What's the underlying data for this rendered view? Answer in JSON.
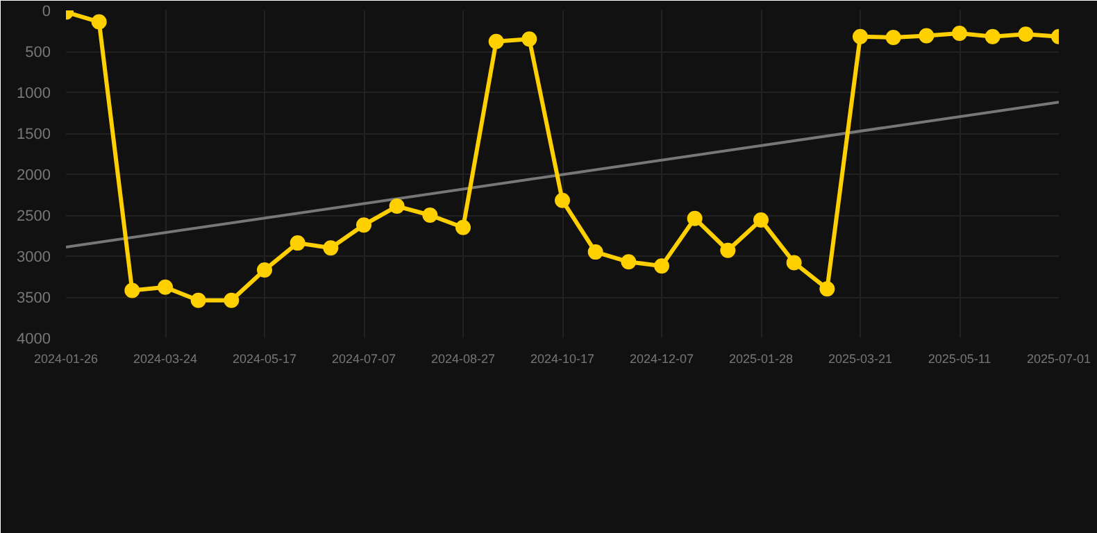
{
  "chart_data": {
    "type": "line",
    "categories": [
      "2024-01-26",
      null,
      null,
      "2024-03-24",
      null,
      null,
      "2024-05-17",
      null,
      null,
      "2024-07-07",
      null,
      null,
      "2024-08-27",
      null,
      null,
      "2024-10-17",
      null,
      null,
      "2024-12-07",
      null,
      null,
      "2025-01-28",
      null,
      null,
      "2025-03-21",
      null,
      null,
      "2025-05-11",
      null,
      null,
      "2025-07-01"
    ],
    "series": [
      {
        "color": "#ffd000",
        "marker": "circle",
        "values": [
          20,
          140,
          3420,
          3380,
          3540,
          3540,
          3170,
          2840,
          2900,
          2620,
          2390,
          2500,
          2650,
          380,
          350,
          2320,
          2950,
          3070,
          3120,
          2540,
          2930,
          2560,
          3080,
          3400,
          320,
          330,
          310,
          280,
          320,
          290,
          320
        ]
      },
      {
        "type": "line",
        "color": "#777777",
        "marker": "none",
        "values": [
          2890,
          null,
          null,
          null,
          null,
          null,
          null,
          null,
          null,
          null,
          null,
          null,
          null,
          null,
          null,
          null,
          null,
          null,
          null,
          null,
          null,
          null,
          null,
          null,
          null,
          null,
          null,
          null,
          null,
          null,
          1120
        ]
      }
    ],
    "ylim": [
      4000,
      0
    ],
    "yticks": [
      0,
      500,
      1000,
      1500,
      2000,
      2500,
      3000,
      3500,
      4000
    ],
    "grid": true
  }
}
